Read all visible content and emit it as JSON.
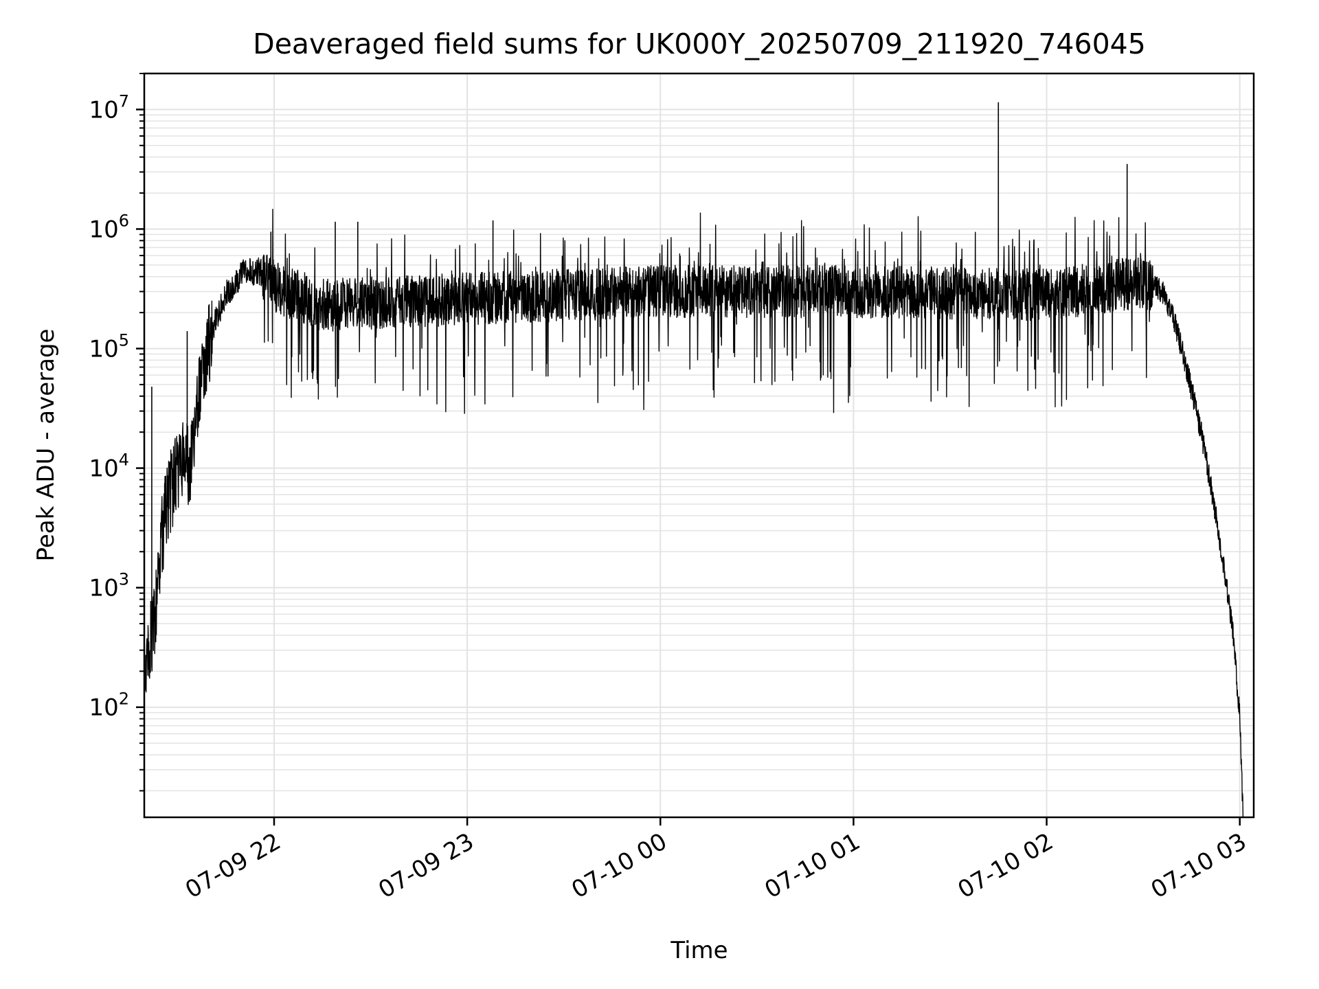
{
  "chart_data": {
    "type": "line",
    "title": "Deaveraged field sums for UK000Y_20250709_211920_746045",
    "xlabel": "Time",
    "ylabel": "Peak ADU - average",
    "yscale": "log",
    "ylim": [
      12,
      20000000
    ],
    "xlim": [
      "2025-07-09 21:19:40",
      "2025-07-10 03:04:20"
    ],
    "grid": true,
    "line_color": "#000000",
    "x_ticks": [
      {
        "value": "2025-07-09 22:00",
        "label": "07-09 22"
      },
      {
        "value": "2025-07-09 23:00",
        "label": "07-09 23"
      },
      {
        "value": "2025-07-10 00:00",
        "label": "07-10 00"
      },
      {
        "value": "2025-07-10 01:00",
        "label": "07-10 01"
      },
      {
        "value": "2025-07-10 02:00",
        "label": "07-10 02"
      },
      {
        "value": "2025-07-10 03:00",
        "label": "07-10 03"
      }
    ],
    "y_ticks": [
      {
        "value": 100,
        "base": "10",
        "exp": "2"
      },
      {
        "value": 1000,
        "base": "10",
        "exp": "3"
      },
      {
        "value": 10000,
        "base": "10",
        "exp": "4"
      },
      {
        "value": 100000,
        "base": "10",
        "exp": "5"
      },
      {
        "value": 1000000,
        "base": "10",
        "exp": "6"
      },
      {
        "value": 10000000,
        "base": "10",
        "exp": "7"
      }
    ],
    "series_points": [
      [
        "2025-07-09 21:20",
        150
      ],
      [
        "2025-07-09 21:21",
        300
      ],
      [
        "2025-07-09 21:23",
        600
      ],
      [
        "2025-07-09 21:25",
        2500
      ],
      [
        "2025-07-09 21:27",
        5500
      ],
      [
        "2025-07-09 21:30",
        9000
      ],
      [
        "2025-07-09 21:32",
        13000
      ],
      [
        "2025-07-09 21:34",
        9000
      ],
      [
        "2025-07-09 21:36",
        30000
      ],
      [
        "2025-07-09 21:38",
        70000
      ],
      [
        "2025-07-09 21:41",
        150000
      ],
      [
        "2025-07-09 21:45",
        280000
      ],
      [
        "2025-07-09 21:50",
        420000
      ],
      [
        "2025-07-09 21:55",
        450000
      ],
      [
        "2025-07-09 22:00",
        330000
      ],
      [
        "2025-07-09 22:15",
        230000
      ],
      [
        "2025-07-09 22:30",
        240000
      ],
      [
        "2025-07-09 23:00",
        260000
      ],
      [
        "2025-07-09 23:30",
        280000
      ],
      [
        "2025-07-10 00:00",
        300000
      ],
      [
        "2025-07-10 00:30",
        300000
      ],
      [
        "2025-07-10 01:00",
        300000
      ],
      [
        "2025-07-10 01:30",
        290000
      ],
      [
        "2025-07-10 02:00",
        280000
      ],
      [
        "2025-07-10 02:15",
        320000
      ],
      [
        "2025-07-10 02:30",
        360000
      ],
      [
        "2025-07-10 02:36",
        300000
      ],
      [
        "2025-07-10 02:40",
        160000
      ],
      [
        "2025-07-10 02:44",
        60000
      ],
      [
        "2025-07-10 02:48",
        20000
      ],
      [
        "2025-07-10 02:52",
        5000
      ],
      [
        "2025-07-10 02:55",
        1500
      ],
      [
        "2025-07-10 02:58",
        400
      ],
      [
        "2025-07-10 03:00",
        80
      ],
      [
        "2025-07-10 03:01",
        13
      ]
    ],
    "spikes": [
      [
        "2025-07-09 21:22",
        48000
      ],
      [
        "2025-07-09 21:26",
        7500
      ],
      [
        "2025-07-09 21:33",
        140000
      ],
      [
        "2025-07-09 21:59",
        950000
      ],
      [
        "2025-07-09 22:19",
        1150000
      ],
      [
        "2025-07-09 22:26",
        1150000
      ],
      [
        "2025-07-09 23:08",
        1180000
      ],
      [
        "2025-07-10 01:45",
        11500000
      ],
      [
        "2025-07-10 02:25",
        3500000
      ]
    ]
  }
}
